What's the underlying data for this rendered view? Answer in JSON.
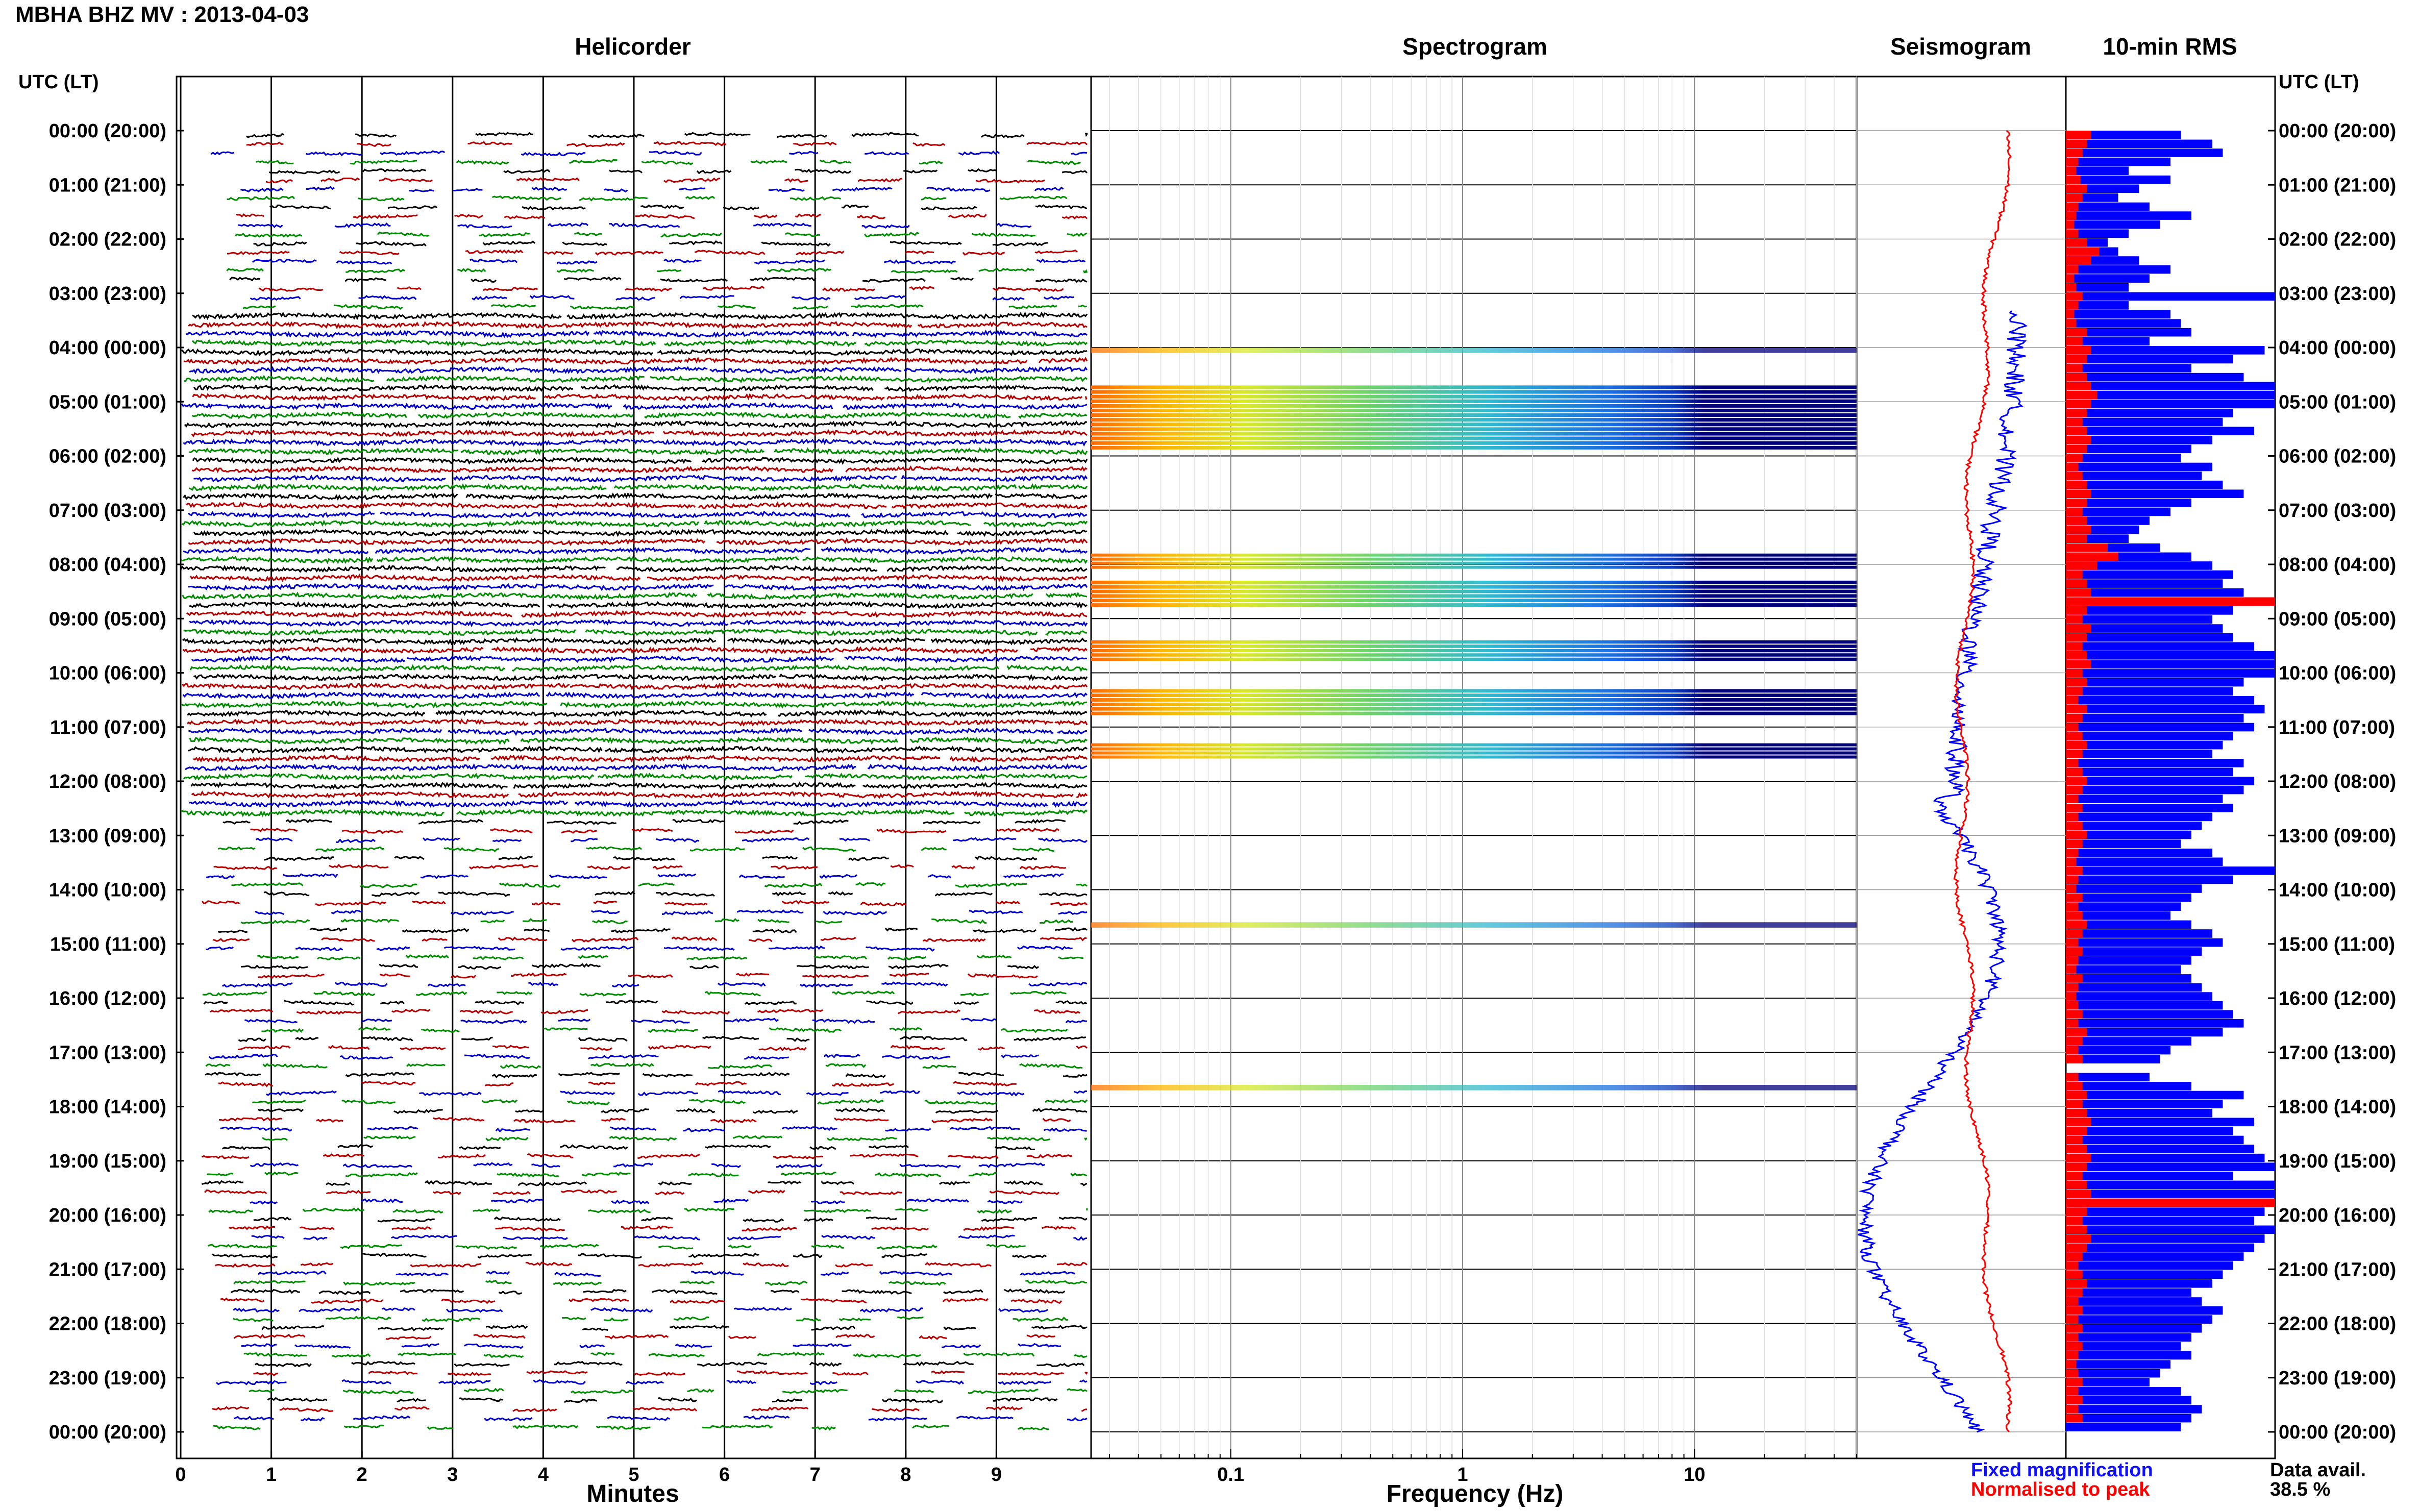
{
  "header": {
    "title": "MBHA BHZ MV : 2013-04-03"
  },
  "panels": {
    "helicorder": "Helicorder",
    "spectrogram": "Spectrogram",
    "seismogram": "Seismogram",
    "rms": "10-min RMS"
  },
  "axes": {
    "time_label_left": "UTC (LT)",
    "time_label_right": "UTC (LT)",
    "minutes_label": "Minutes",
    "frequency_label": "Frequency (Hz)"
  },
  "legend": {
    "fixed": "Fixed magnification",
    "normalised": "Normalised to peak",
    "data_avail_label": "Data avail.",
    "data_avail_value": "38.5 %"
  },
  "colors": {
    "trace_cycle": [
      "#000000",
      "#b40000",
      "#0000c8",
      "#008c00"
    ],
    "rms_fixed": "#0000ff",
    "rms_normalised": "#ff0000",
    "seismogram_fixed": "#0000ff",
    "seismogram_normalised": "#ff0000"
  },
  "chart_data": {
    "type": "heatmap",
    "time_ticks": [
      "00:00 (20:00)",
      "01:00 (21:00)",
      "02:00 (22:00)",
      "03:00 (23:00)",
      "04:00 (00:00)",
      "05:00 (01:00)",
      "06:00 (02:00)",
      "07:00 (03:00)",
      "08:00 (04:00)",
      "09:00 (05:00)",
      "10:00 (06:00)",
      "11:00 (07:00)",
      "12:00 (08:00)",
      "13:00 (09:00)",
      "14:00 (10:00)",
      "15:00 (11:00)",
      "16:00 (12:00)",
      "17:00 (13:00)",
      "18:00 (14:00)",
      "19:00 (15:00)",
      "20:00 (16:00)",
      "21:00 (17:00)",
      "22:00 (18:00)",
      "23:00 (19:00)",
      "00:00 (20:00)"
    ],
    "minute_ticks": [
      "0",
      "1",
      "2",
      "3",
      "4",
      "5",
      "6",
      "7",
      "8",
      "9"
    ],
    "minute_range": [
      0,
      10
    ],
    "frequency_ticks": [
      "0.1",
      "1",
      "10"
    ],
    "frequency_range": [
      0.025,
      50
    ],
    "frequency_scale": "log",
    "spectrogram_active_hours": [
      [
        4.0,
        4.1
      ],
      [
        4.7,
        5.9
      ],
      [
        7.8,
        8.1
      ],
      [
        8.3,
        8.8
      ],
      [
        9.4,
        9.8
      ],
      [
        10.3,
        10.8
      ],
      [
        11.3,
        11.6
      ],
      [
        14.6,
        14.7
      ],
      [
        17.6,
        17.7
      ]
    ],
    "rms_fixed": [
      0.55,
      0.7,
      0.75,
      0.5,
      0.3,
      0.5,
      0.35,
      0.25,
      0.4,
      0.6,
      0.45,
      0.3,
      0.2,
      0.25,
      0.35,
      0.5,
      0.4,
      0.3,
      1.0,
      0.3,
      0.5,
      0.55,
      0.6,
      0.4,
      0.95,
      0.8,
      0.6,
      0.85,
      1.0,
      1.0,
      1.0,
      0.8,
      0.75,
      0.9,
      0.7,
      0.6,
      0.55,
      0.7,
      0.65,
      0.75,
      0.85,
      0.6,
      0.5,
      0.4,
      0.35,
      0.3,
      0.45,
      0.6,
      0.7,
      0.8,
      0.75,
      0.85,
      0.9,
      0.8,
      0.7,
      0.75,
      0.8,
      0.9,
      1.0,
      1.0,
      1.0,
      0.85,
      0.8,
      0.9,
      0.95,
      0.85,
      0.9,
      0.8,
      0.75,
      0.7,
      0.85,
      0.8,
      0.9,
      0.85,
      0.75,
      0.8,
      0.7,
      0.65,
      0.6,
      0.55,
      0.7,
      0.75,
      1.0,
      0.8,
      0.65,
      0.6,
      0.55,
      0.5,
      0.6,
      0.7,
      0.75,
      0.65,
      0.6,
      0.55,
      0.6,
      0.65,
      0.7,
      0.75,
      0.8,
      0.85,
      0.75,
      0.6,
      0.5,
      0.45,
      0.0,
      0.4,
      0.6,
      0.85,
      0.75,
      0.7,
      0.9,
      0.8,
      0.85,
      0.9,
      0.95,
      1.0,
      0.8,
      1.0,
      1.0,
      1.0,
      0.95,
      0.9,
      1.0,
      0.95,
      0.9,
      0.85,
      0.8,
      0.75,
      0.7,
      0.6,
      0.65,
      0.75,
      0.7,
      0.65,
      0.6,
      0.55,
      0.6,
      0.5,
      0.45,
      0.4,
      0.55,
      0.6,
      0.65,
      0.6,
      0.55
    ],
    "rms_normalised": [
      0.12,
      0.1,
      0.08,
      0.06,
      0.05,
      0.07,
      0.1,
      0.08,
      0.06,
      0.05,
      0.04,
      0.06,
      0.1,
      0.16,
      0.12,
      0.06,
      0.04,
      0.05,
      0.08,
      0.06,
      0.04,
      0.05,
      0.1,
      0.08,
      0.12,
      0.1,
      0.08,
      0.1,
      0.12,
      0.15,
      0.12,
      0.1,
      0.08,
      0.1,
      0.12,
      0.1,
      0.08,
      0.06,
      0.08,
      0.1,
      0.12,
      0.1,
      0.08,
      0.1,
      0.12,
      0.1,
      0.2,
      0.25,
      0.15,
      0.08,
      0.1,
      0.12,
      1.0,
      0.1,
      0.08,
      0.12,
      0.1,
      0.08,
      0.1,
      0.12,
      0.08,
      0.1,
      0.08,
      0.06,
      0.1,
      0.08,
      0.06,
      0.08,
      0.1,
      0.08,
      0.06,
      0.08,
      0.1,
      0.08,
      0.06,
      0.08,
      0.06,
      0.08,
      0.1,
      0.08,
      0.06,
      0.05,
      0.08,
      0.06,
      0.05,
      0.08,
      0.06,
      0.08,
      0.1,
      0.08,
      0.06,
      0.08,
      0.06,
      0.05,
      0.08,
      0.06,
      0.05,
      0.06,
      0.08,
      0.06,
      0.1,
      0.08,
      0.06,
      0.08,
      0.0,
      0.06,
      0.08,
      0.1,
      0.08,
      0.1,
      0.12,
      0.1,
      0.08,
      0.1,
      0.12,
      0.1,
      0.08,
      0.1,
      0.12,
      1.0,
      0.1,
      0.08,
      0.1,
      0.12,
      0.1,
      0.08,
      0.06,
      0.08,
      0.1,
      0.08,
      0.06,
      0.08,
      0.06,
      0.08,
      0.06,
      0.08,
      0.06,
      0.05,
      0.06,
      0.08,
      0.06,
      0.08,
      0.06,
      0.08
    ]
  }
}
